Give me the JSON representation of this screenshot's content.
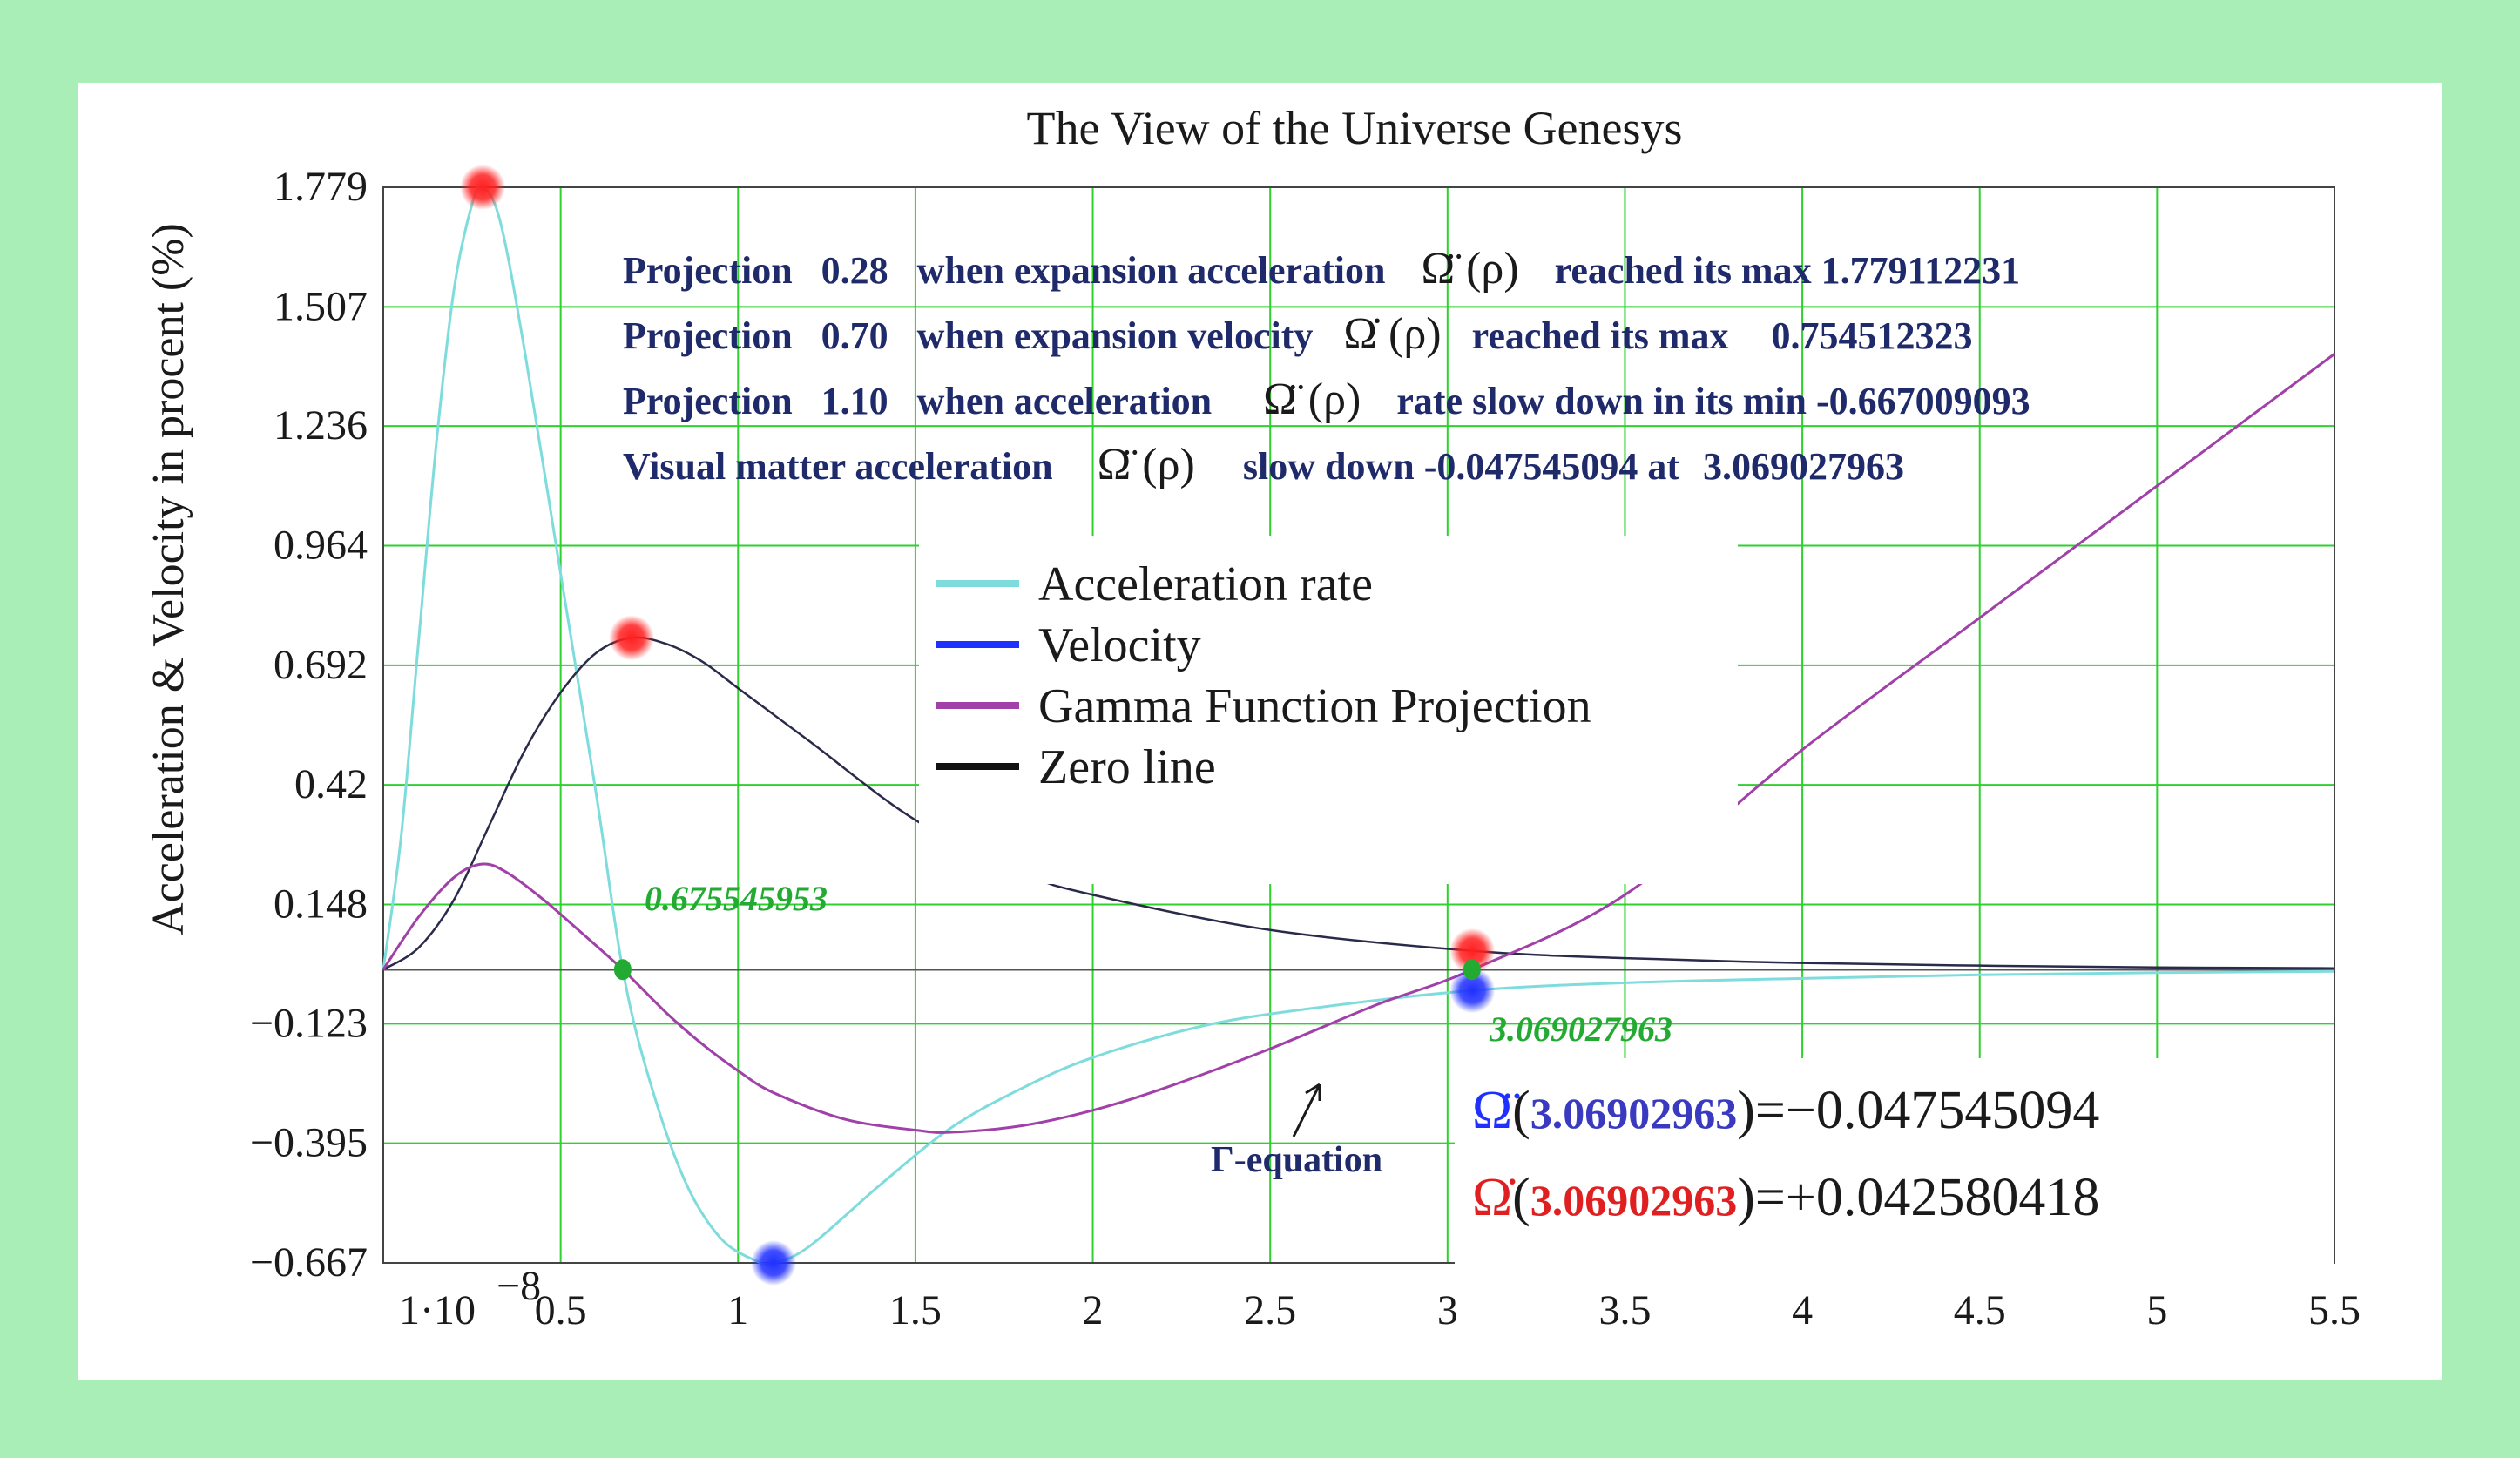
{
  "colors": {
    "frame": "#a8eeb6",
    "grid": "#2fd12f",
    "acceleration": "#7fdcdc",
    "velocity": "#2a2a4a",
    "gamma": "#a040a8",
    "zero": "#555555",
    "annotation_text": "#1f2a6b",
    "marker_red": "#ff2020",
    "marker_blue": "#2030ff",
    "marker_green": "#22aa33"
  },
  "chart_data": {
    "type": "line",
    "title": "The View of the Universe Genesys",
    "xlabel": "",
    "ylabel": "Acceleration & Velocity in procent (%)",
    "xlim": [
      0,
      5.5
    ],
    "ylim": [
      -0.667,
      1.779
    ],
    "x_ticks": [
      0,
      0.5,
      1,
      1.5,
      2,
      2.5,
      3,
      3.5,
      4,
      4.5,
      5,
      5.5
    ],
    "x_tick_labels": [
      "1·10",
      "0.5",
      "1",
      "1.5",
      "2",
      "2.5",
      "3",
      "3.5",
      "4",
      "4.5",
      "5",
      "5.5"
    ],
    "x_first_tick_exponent": "−8",
    "y_ticks": [
      1.779,
      1.507,
      1.236,
      0.964,
      0.692,
      0.42,
      0.148,
      -0.123,
      -0.395,
      -0.667
    ],
    "y_tick_labels": [
      "1.779",
      "1.507",
      "1.236",
      "0.964",
      "0.692",
      "0.42",
      "0.148",
      "−0.123",
      "−0.395",
      "−0.667"
    ],
    "grid": true,
    "legend": {
      "placement": "center",
      "entries": [
        {
          "label": "Acceleration rate",
          "color": "#7fdcdc"
        },
        {
          "label": "Velocity",
          "color": "#2030ff"
        },
        {
          "label": "Gamma Function Projection",
          "color": "#a040a8"
        },
        {
          "label": "Zero line",
          "color": "#111111"
        }
      ]
    },
    "series": [
      {
        "name": "Acceleration rate",
        "color": "#7fdcdc",
        "x": [
          0,
          0.05,
          0.1,
          0.15,
          0.2,
          0.25,
          0.28,
          0.33,
          0.4,
          0.5,
          0.6,
          0.675,
          0.75,
          0.85,
          0.95,
          1.05,
          1.1,
          1.2,
          1.4,
          1.6,
          1.8,
          2.0,
          2.3,
          2.6,
          3.07,
          3.5,
          4.0,
          4.5,
          5.0,
          5.5
        ],
        "y": [
          0,
          0.3,
          0.75,
          1.2,
          1.55,
          1.74,
          1.779,
          1.7,
          1.4,
          0.9,
          0.4,
          0.0,
          -0.25,
          -0.48,
          -0.61,
          -0.662,
          -0.667,
          -0.63,
          -0.49,
          -0.36,
          -0.27,
          -0.2,
          -0.13,
          -0.09,
          -0.0475,
          -0.03,
          -0.02,
          -0.012,
          -0.007,
          -0.004
        ]
      },
      {
        "name": "Velocity",
        "color": "#2a2a4a",
        "x": [
          0,
          0.1,
          0.2,
          0.3,
          0.4,
          0.5,
          0.6,
          0.7,
          0.8,
          0.9,
          1.0,
          1.2,
          1.5,
          1.8,
          2.0,
          2.5,
          3.07,
          3.5,
          4.0,
          4.5,
          5.0,
          5.5
        ],
        "y": [
          0,
          0.05,
          0.16,
          0.33,
          0.5,
          0.63,
          0.72,
          0.7545,
          0.74,
          0.7,
          0.64,
          0.52,
          0.34,
          0.22,
          0.17,
          0.09,
          0.0426,
          0.026,
          0.015,
          0.009,
          0.005,
          0.003
        ]
      },
      {
        "name": "Gamma Function Projection",
        "color": "#a040a8",
        "x": [
          0,
          0.1,
          0.2,
          0.28,
          0.35,
          0.45,
          0.55,
          0.675,
          0.8,
          0.9,
          1.0,
          1.1,
          1.3,
          1.5,
          1.6,
          1.8,
          2.0,
          2.2,
          2.5,
          2.8,
          3.07,
          3.5,
          4.0,
          4.5,
          5.0,
          5.5
        ],
        "y": [
          0,
          0.12,
          0.21,
          0.24,
          0.22,
          0.16,
          0.09,
          0.0,
          -0.1,
          -0.17,
          -0.23,
          -0.28,
          -0.34,
          -0.365,
          -0.37,
          -0.355,
          -0.32,
          -0.27,
          -0.18,
          -0.08,
          0.0,
          0.17,
          0.5,
          0.8,
          1.1,
          1.4
        ]
      },
      {
        "name": "Zero line",
        "color": "#555555",
        "x": [
          0,
          5.5
        ],
        "y": [
          0,
          0
        ]
      }
    ],
    "markers": [
      {
        "x": 0.28,
        "y": 1.779,
        "color": "red"
      },
      {
        "x": 0.7,
        "y": 0.7545,
        "color": "red"
      },
      {
        "x": 1.1,
        "y": -0.667,
        "color": "blue"
      },
      {
        "x": 3.07,
        "y": 0.0426,
        "color": "red"
      },
      {
        "x": 3.07,
        "y": -0.0475,
        "color": "blue"
      },
      {
        "x": 0.675,
        "y": 0,
        "color": "green"
      },
      {
        "x": 3.069,
        "y": 0,
        "color": "green"
      }
    ],
    "annotations": {
      "line1": {
        "a": "Projection",
        "b": "0.28",
        "c": "when expansion acceleration",
        "sym": "Ω̈ (ρ)",
        "d": "reached its max 1.779112231"
      },
      "line2": {
        "a": "Projection",
        "b": "0.70",
        "c": "when expansion velocity",
        "sym": "Ω̇ (ρ)",
        "d": "reached its max",
        "e": "0.754512323"
      },
      "line3": {
        "a": "Projection",
        "b": "1.10",
        "c": "when acceleration",
        "sym": "Ω̈ (ρ)",
        "d": "rate slow down in its min -0.667009093"
      },
      "line4": {
        "a": "Visual matter acceleration",
        "sym": "Ω̈ (ρ)",
        "c": "slow down -0.047545094 at",
        "d": "3.069027963"
      },
      "zero1": "0.675545953",
      "zero2": "3.069027963",
      "gamma_eq": "Γ-equation",
      "eq1": {
        "sym": "Ω̈",
        "arg": "3.06902963",
        "rhs": ")=−0.047545094"
      },
      "eq2": {
        "sym": "Ω̇",
        "arg": "3.06902963",
        "rhs": ")=+0.042580418"
      }
    }
  }
}
